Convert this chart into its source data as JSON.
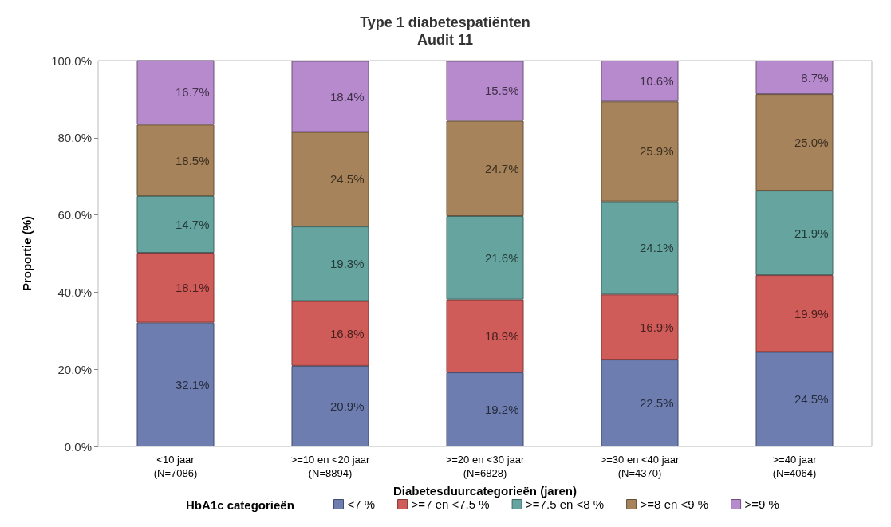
{
  "chart_data": {
    "type": "bar",
    "stacked": true,
    "title": "Type 1 diabetespatiënten",
    "subtitle": "Audit 11",
    "xlabel": "Diabetesduurcategorieën (jaren)",
    "ylabel": "Proportie (%)",
    "legend_title": "HbA1c categorieën",
    "legend": "bottom",
    "grid": false,
    "categories": [
      "<10 jaar\n(N=7086)",
      ">=10 en <20 jaar\n(N=8894)",
      ">=20 en <30 jaar\n(N=6828)",
      ">=30 en <40 jaar\n(N=4370)",
      ">=40 jaar\n(N=4064)"
    ],
    "ylim": [
      0,
      100
    ],
    "yticks": [
      {
        "value": 0,
        "label": "0.0%"
      },
      {
        "value": 20,
        "label": "20.0%"
      },
      {
        "value": 40,
        "label": "40.0%"
      },
      {
        "value": 60,
        "label": "60.0%"
      },
      {
        "value": 80,
        "label": "80.0%"
      },
      {
        "value": 100,
        "label": "100.0%"
      }
    ],
    "series": [
      {
        "name": "<7 %",
        "color": "#6d7db0",
        "values": [
          32.1,
          20.9,
          19.2,
          22.5,
          24.5
        ],
        "value_labels": [
          "32.1%",
          "20.9%",
          "19.2%",
          "22.5%",
          "24.5%"
        ]
      },
      {
        "name": ">=7 en <7.5 %",
        "color": "#d05c5a",
        "values": [
          18.1,
          16.8,
          18.9,
          16.9,
          19.9
        ],
        "value_labels": [
          "18.1%",
          "16.8%",
          "18.9%",
          "16.9%",
          "19.9%"
        ]
      },
      {
        "name": ">=7.5 en <8 %",
        "color": "#66a59f",
        "values": [
          14.7,
          19.3,
          21.6,
          24.1,
          21.9
        ],
        "value_labels": [
          "14.7%",
          "19.3%",
          "21.6%",
          "24.1%",
          "21.9%"
        ]
      },
      {
        "name": ">=8 en <9 %",
        "color": "#a6835a",
        "values": [
          18.5,
          24.5,
          24.7,
          25.9,
          25.0
        ],
        "value_labels": [
          "18.5%",
          "24.5%",
          "24.7%",
          "25.9%",
          "25.0%"
        ]
      },
      {
        "name": ">=9 %",
        "color": "#b68acd",
        "values": [
          16.7,
          18.4,
          15.5,
          10.6,
          8.7
        ],
        "value_labels": [
          "16.7%",
          "18.4%",
          "15.5%",
          "10.6%",
          "8.7%"
        ]
      }
    ]
  }
}
